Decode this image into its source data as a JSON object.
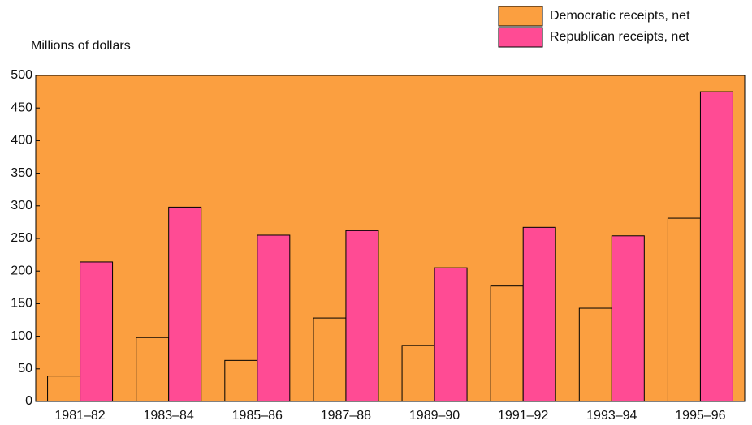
{
  "chart_data": {
    "type": "bar",
    "y_axis_label": "Millions of dollars",
    "categories": [
      "1981–82",
      "1983–84",
      "1985–86",
      "1987–88",
      "1989–90",
      "1991–92",
      "1993–94",
      "1995–96"
    ],
    "series": [
      {
        "name": "Democratic receipts, net",
        "color": "#fb9f40",
        "values": [
          39,
          98,
          63,
          128,
          86,
          177,
          143,
          281
        ]
      },
      {
        "name": "Republican receipts, net",
        "color": "#ff4b94",
        "values": [
          214,
          298,
          255,
          262,
          205,
          267,
          254,
          475
        ]
      }
    ],
    "ylim": [
      0,
      500
    ],
    "yticks": [
      0,
      50,
      100,
      150,
      200,
      250,
      300,
      350,
      400,
      450,
      500
    ],
    "plot_background": "#fb9f40",
    "legend": "top-right"
  }
}
